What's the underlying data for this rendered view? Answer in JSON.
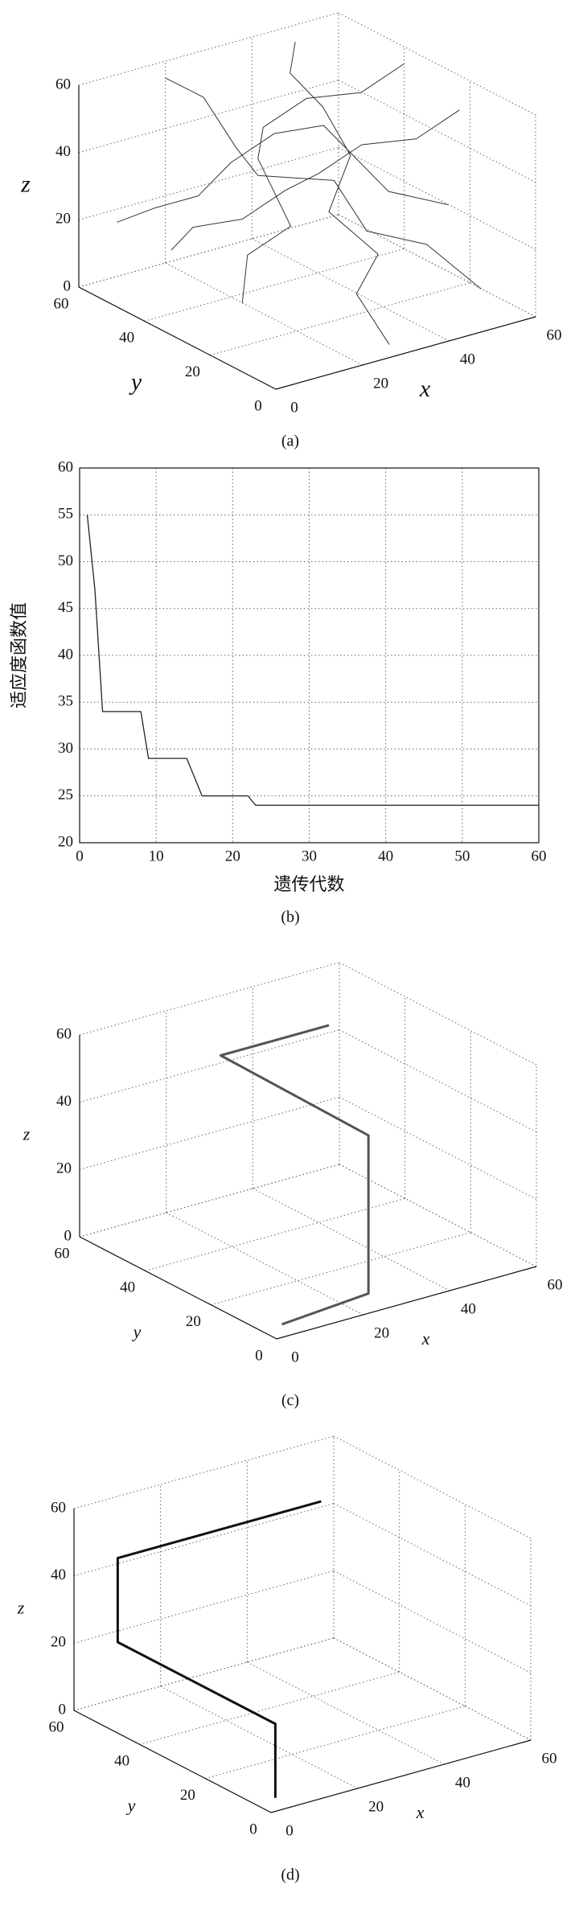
{
  "chart_data": [
    {
      "type": "line3d",
      "caption": "(a)",
      "xlabel": "x",
      "ylabel": "y",
      "zlabel": "z",
      "xlim": [
        0,
        60
      ],
      "ylim": [
        0,
        60
      ],
      "zlim": [
        0,
        60
      ],
      "xticks": [
        0,
        20,
        40,
        60
      ],
      "yticks": [
        0,
        20,
        40,
        60
      ],
      "zticks": [
        0,
        20,
        40,
        60
      ],
      "grid": true,
      "series": [
        {
          "color": "#333333",
          "x": [
            10,
            15,
            15,
            25,
            25,
            35,
            40,
            50
          ],
          "y": [
            45,
            45,
            30,
            30,
            20,
            20,
            10,
            10
          ],
          "z": [
            15,
            20,
            30,
            35,
            45,
            50,
            55,
            60
          ]
        },
        {
          "color": "#333333",
          "x": [
            5,
            10,
            20,
            20,
            30,
            30,
            45,
            55
          ],
          "y": [
            55,
            50,
            50,
            40,
            40,
            25,
            25,
            20
          ],
          "z": [
            20,
            25,
            25,
            40,
            45,
            55,
            30,
            25
          ]
        },
        {
          "color": "#333333",
          "x": [
            30,
            30,
            35,
            35,
            40,
            45,
            45,
            50
          ],
          "y": [
            5,
            15,
            15,
            30,
            30,
            45,
            55,
            60
          ],
          "z": [
            0,
            10,
            20,
            25,
            40,
            45,
            50,
            55
          ]
        },
        {
          "color": "#333333",
          "x": [
            20,
            25,
            25,
            30,
            40,
            40,
            50,
            55
          ],
          "y": [
            60,
            55,
            45,
            45,
            35,
            25,
            20,
            10
          ],
          "z": [
            55,
            50,
            40,
            30,
            30,
            20,
            15,
            5
          ]
        },
        {
          "color": "#333333",
          "x": [
            15,
            20,
            30,
            30,
            35,
            45,
            50,
            60
          ],
          "y": [
            30,
            35,
            35,
            45,
            50,
            50,
            40,
            40
          ],
          "z": [
            5,
            15,
            20,
            35,
            40,
            45,
            50,
            55
          ]
        }
      ]
    },
    {
      "type": "line",
      "caption": "(b)",
      "xlabel": "遗传代数",
      "ylabel": "适应度函数值",
      "x": [
        1,
        2,
        3,
        8,
        9,
        14,
        16,
        22,
        23,
        60
      ],
      "values": [
        55,
        47,
        34,
        34,
        29,
        29,
        25,
        25,
        24,
        24
      ],
      "color": "#222222",
      "xlim": [
        0,
        60
      ],
      "ylim": [
        20,
        60
      ],
      "xticks": [
        0,
        10,
        20,
        30,
        40,
        50,
        60
      ],
      "yticks": [
        20,
        25,
        30,
        35,
        40,
        45,
        50,
        55,
        60
      ],
      "grid": true
    },
    {
      "type": "line3d",
      "caption": "(c)",
      "xlabel": "x",
      "ylabel": "y",
      "zlabel": "z",
      "xlim": [
        0,
        60
      ],
      "ylim": [
        0,
        60
      ],
      "zlim": [
        0,
        60
      ],
      "xticks": [
        0,
        20,
        40,
        60
      ],
      "yticks": [
        0,
        20,
        40,
        60
      ],
      "zticks": [
        0,
        20,
        40,
        60
      ],
      "grid": true,
      "series": [
        {
          "color": "#555555",
          "x": [
            5,
            25,
            25,
            25,
            50
          ],
          "y": [
            5,
            5,
            5,
            50,
            50
          ],
          "z": [
            0,
            2,
            49,
            50,
            50
          ]
        }
      ]
    },
    {
      "type": "line3d",
      "caption": "(d)",
      "xlabel": "x",
      "ylabel": "y",
      "zlabel": "z",
      "xlim": [
        0,
        60
      ],
      "ylim": [
        0,
        60
      ],
      "zlim": [
        0,
        60
      ],
      "xticks": [
        0,
        20,
        40,
        60
      ],
      "yticks": [
        0,
        20,
        40,
        60
      ],
      "zticks": [
        0,
        20,
        40,
        60
      ],
      "grid": true,
      "series": [
        {
          "color": "#111111",
          "x": [
            1,
            1,
            1,
            1,
            48
          ],
          "y": [
            0,
            0,
            48,
            48,
            48
          ],
          "z": [
            4,
            26,
            26,
            51,
            51
          ]
        }
      ]
    }
  ]
}
